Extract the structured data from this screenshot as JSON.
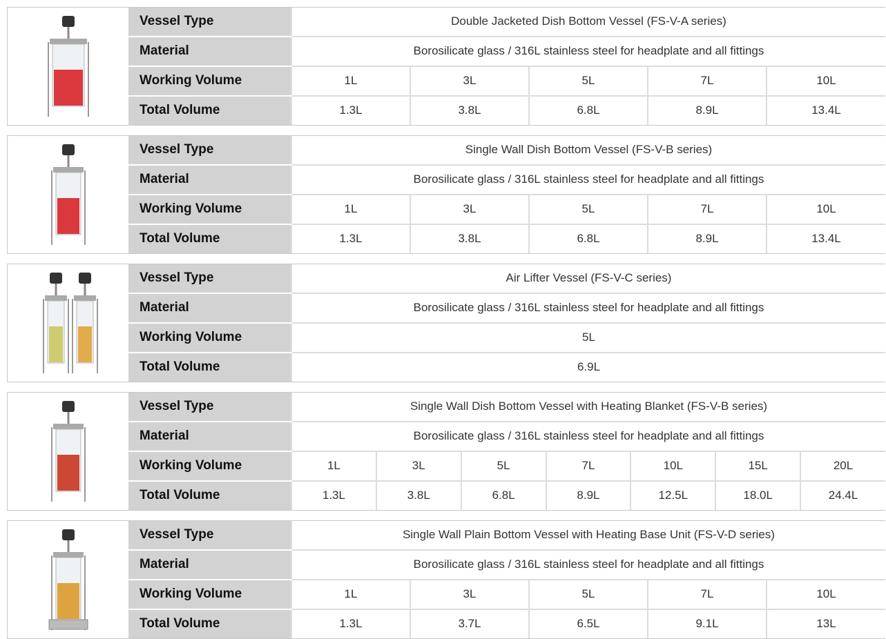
{
  "blocks": [
    {
      "rows": [
        {
          "label": "Vessel Type",
          "cells": [
            "Double Jacketed Dish Bottom Vessel (FS-V-A series)"
          ]
        },
        {
          "label": "Material",
          "cells": [
            "Borosilicate glass / 316L stainless steel for headplate and all fittings"
          ]
        },
        {
          "label": "Working Volume",
          "cells": [
            "1L",
            "3L",
            "5L",
            "7L",
            "10L"
          ]
        },
        {
          "label": "Total Volume",
          "cells": [
            "1.3L",
            "3.8L",
            "6.8L",
            "8.9L",
            "13.4L"
          ]
        }
      ]
    },
    {
      "rows": [
        {
          "label": "Vessel Type",
          "cells": [
            "Single Wall Dish Bottom Vessel (FS-V-B series)"
          ]
        },
        {
          "label": "Material",
          "cells": [
            "Borosilicate glass / 316L stainless steel for headplate and all fittings"
          ]
        },
        {
          "label": "Working Volume",
          "cells": [
            "1L",
            "3L",
            "5L",
            "7L",
            "10L"
          ]
        },
        {
          "label": "Total Volume",
          "cells": [
            "1.3L",
            "3.8L",
            "6.8L",
            "8.9L",
            "13.4L"
          ]
        }
      ]
    },
    {
      "rows": [
        {
          "label": "Vessel Type",
          "cells": [
            "Air Lifter Vessel (FS-V-C series)"
          ]
        },
        {
          "label": "Material",
          "cells": [
            "Borosilicate glass / 316L stainless steel for headplate and all fittings"
          ]
        },
        {
          "label": "Working Volume",
          "cells": [
            "5L"
          ]
        },
        {
          "label": "Total Volume",
          "cells": [
            "6.9L"
          ]
        }
      ]
    },
    {
      "rows": [
        {
          "label": "Vessel Type",
          "cells": [
            "Single Wall Dish Bottom Vessel with Heating Blanket (FS-V-B series)"
          ]
        },
        {
          "label": "Material",
          "cells": [
            "Borosilicate glass / 316L stainless steel for headplate and all fittings"
          ]
        },
        {
          "label": "Working Volume",
          "cells": [
            "1L",
            "3L",
            "5L",
            "7L",
            "10L",
            "15L",
            "20L"
          ]
        },
        {
          "label": "Total Volume",
          "cells": [
            "1.3L",
            "3.8L",
            "6.8L",
            "8.9L",
            "12.5L",
            "18.0L",
            "24.4L"
          ]
        }
      ]
    },
    {
      "rows": [
        {
          "label": "Vessel Type",
          "cells": [
            "Single Wall Plain Bottom Vessel with Heating Base Unit (FS-V-D series)"
          ]
        },
        {
          "label": "Material",
          "cells": [
            "Borosilicate glass / 316L stainless steel for headplate and all fittings"
          ]
        },
        {
          "label": "Working Volume",
          "cells": [
            "1L",
            "3L",
            "5L",
            "7L",
            "10L"
          ]
        },
        {
          "label": "Total Volume",
          "cells": [
            "1.3L",
            "3.7L",
            "6.5L",
            "9.1L",
            "13L"
          ]
        }
      ]
    }
  ]
}
